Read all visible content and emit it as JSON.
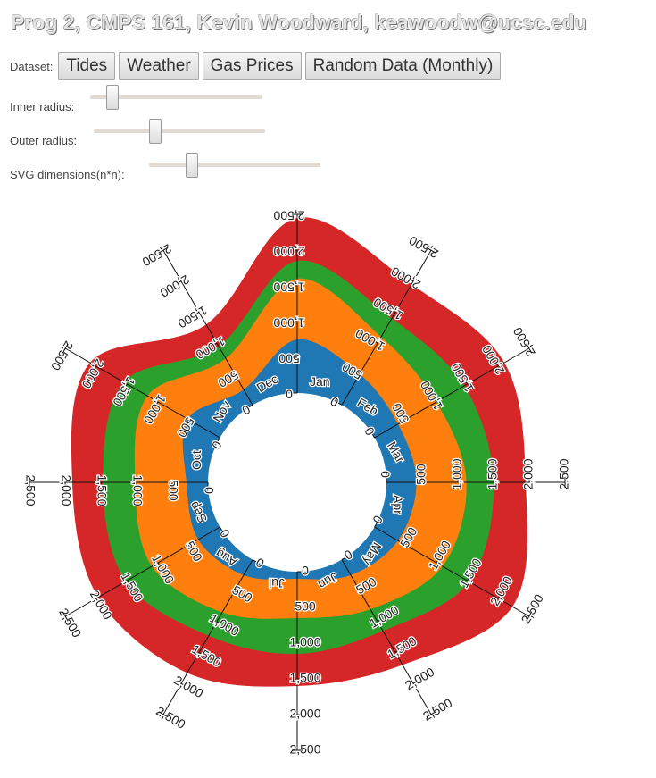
{
  "page": {
    "title": "Prog 2, CMPS 161, Kevin Woodward, keawoodw@ucsc.edu"
  },
  "dataset": {
    "label": "Dataset:",
    "buttons": [
      "Tides",
      "Weather",
      "Gas Prices",
      "Random Data (Monthly)"
    ]
  },
  "controls": {
    "inner_radius": {
      "label": "Inner radius:",
      "value": 0.13
    },
    "outer_radius": {
      "label": "Outer radius:",
      "value": 0.36
    },
    "svg_dimensions": {
      "label": "SVG dimensions(n*n):",
      "value": 0.25
    }
  },
  "chart_data": {
    "type": "area",
    "subtype": "radial stacked area",
    "categories": [
      "Jan",
      "Feb",
      "Mar",
      "Apr",
      "May",
      "Jun",
      "Jul",
      "Aug",
      "Sep",
      "Oct",
      "Nov",
      "Dec"
    ],
    "axis_ticks": [
      "500",
      "1,000",
      "1,500",
      "2,000",
      "2,500"
    ],
    "axis_zero_label": "0",
    "ylim": [
      0,
      2500
    ],
    "series": [
      {
        "color": "#1f77b4",
        "values": [
          750,
          500,
          380,
          420,
          380,
          250,
          100,
          250,
          350,
          300,
          520,
          250
        ]
      },
      {
        "color": "#ff7f0e",
        "values": [
          850,
          600,
          620,
          700,
          720,
          550,
          550,
          600,
          750,
          720,
          650,
          500
        ]
      },
      {
        "color": "#2ca02c",
        "values": [
          250,
          300,
          450,
          380,
          430,
          350,
          500,
          380,
          420,
          450,
          380,
          200
        ]
      },
      {
        "color": "#d62728",
        "values": [
          600,
          550,
          650,
          450,
          700,
          550,
          450,
          600,
          450,
          430,
          550,
          350
        ]
      }
    ],
    "grid": false,
    "legend": "none"
  }
}
